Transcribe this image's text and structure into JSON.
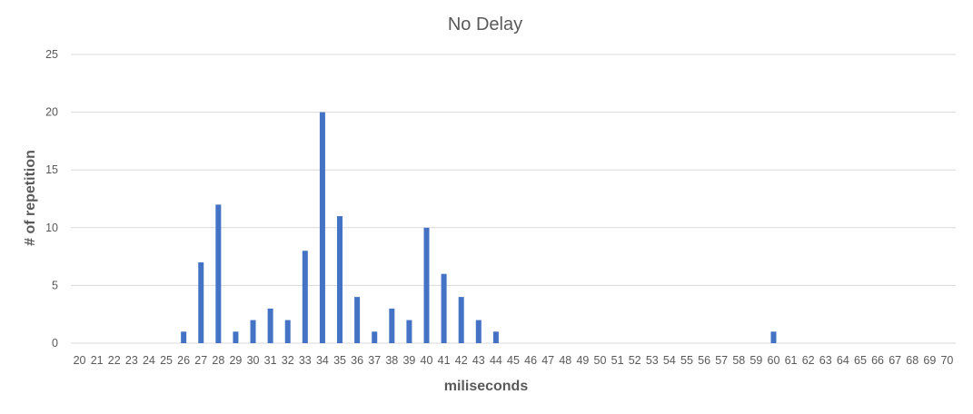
{
  "chart_data": {
    "type": "bar",
    "title": "No Delay",
    "xlabel": "miliseconds",
    "ylabel": "# of repetition",
    "categories": [
      "20",
      "21",
      "22",
      "23",
      "24",
      "25",
      "26",
      "27",
      "28",
      "29",
      "30",
      "31",
      "32",
      "33",
      "34",
      "35",
      "36",
      "37",
      "38",
      "39",
      "40",
      "41",
      "42",
      "43",
      "44",
      "45",
      "46",
      "47",
      "48",
      "49",
      "50",
      "51",
      "52",
      "53",
      "54",
      "55",
      "56",
      "57",
      "58",
      "59",
      "60",
      "61",
      "62",
      "63",
      "64",
      "65",
      "66",
      "67",
      "68",
      "69",
      "70"
    ],
    "values": [
      0,
      0,
      0,
      0,
      0,
      0,
      1,
      7,
      12,
      1,
      2,
      3,
      2,
      8,
      20,
      11,
      4,
      1,
      3,
      2,
      10,
      6,
      4,
      2,
      1,
      0,
      0,
      0,
      0,
      0,
      0,
      0,
      0,
      0,
      0,
      0,
      0,
      0,
      0,
      0,
      1,
      0,
      0,
      0,
      0,
      0,
      0,
      0,
      0,
      0,
      0
    ],
    "ylim": [
      0,
      25
    ],
    "yticks": [
      0,
      5,
      10,
      15,
      20,
      25
    ],
    "grid": true,
    "colors": {
      "bar": "#4472c4",
      "grid": "#d9d9d9",
      "text": "#595959"
    }
  }
}
